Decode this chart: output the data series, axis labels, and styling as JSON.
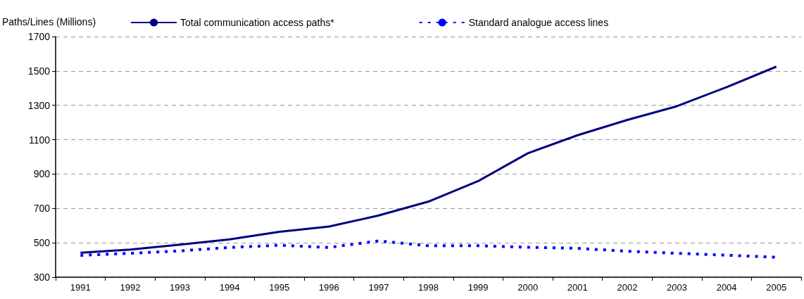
{
  "chart_data": {
    "type": "line",
    "ylabel": "Paths/Lines (Millions)",
    "categories": [
      "1991",
      "1992",
      "1993",
      "1994",
      "1995",
      "1996",
      "1997",
      "1998",
      "1999",
      "2000",
      "2001",
      "2002",
      "2003",
      "2004",
      "2005"
    ],
    "series": [
      {
        "name": "Total communication access paths*",
        "color": "#000080",
        "line_style": "solid",
        "values": [
          442,
          461,
          489,
          520,
          564,
          595,
          659,
          740,
          859,
          1021,
          1126,
          1215,
          1295,
          1406,
          1525
        ]
      },
      {
        "name": "Standard analogue access lines",
        "color": "#0000ff",
        "line_style": "dashed",
        "values": [
          427,
          439,
          453,
          473,
          486,
          473,
          511,
          483,
          483,
          474,
          468,
          451,
          439,
          428,
          416
        ]
      }
    ],
    "ylim": [
      300,
      1700
    ],
    "yticks": [
      300,
      500,
      700,
      900,
      1100,
      1300,
      1500,
      1700
    ],
    "grid": "y",
    "legend": "top",
    "marker": "none"
  }
}
